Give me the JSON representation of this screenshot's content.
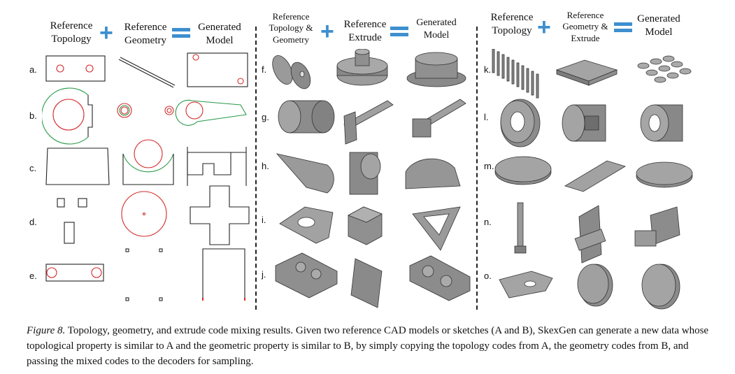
{
  "panels": [
    {
      "id": "sketch",
      "headers": [
        "Reference\nTopology",
        "Reference\nGeometry",
        "Generated\nModel"
      ],
      "ops": [
        "+",
        "="
      ],
      "rows": [
        "a.",
        "b.",
        "c.",
        "d.",
        "e."
      ]
    },
    {
      "id": "solid-extrude",
      "headers": [
        "Reference\nTopology &\nGeometry",
        "Reference\nExtrude",
        "Generated\nModel"
      ],
      "ops": [
        "+",
        "="
      ],
      "rows": [
        "f.",
        "g.",
        "h.",
        "i.",
        "j."
      ]
    },
    {
      "id": "solid-topology",
      "headers": [
        "Reference\nTopology",
        "Reference\nGeometry &\nExtrude",
        "Generated\nModel"
      ],
      "ops": [
        "+",
        "="
      ],
      "rows": [
        "k.",
        "l.",
        "m.",
        "n.",
        "o."
      ]
    }
  ],
  "caption": {
    "label": "Figure 8.",
    "text": " Topology, geometry, and extrude code mixing results. Given two reference CAD models or sketches (A and B), SkexGen can generate a new data whose topological property is similar to A and the geometric property is similar to B, by simply copying the topology codes from A, the geometry codes from B, and passing the mixed codes to the decoders for sampling."
  },
  "colors": {
    "operator": "#3d8fcf",
    "loop_red": "#d42a2a",
    "loop_green": "#2a9a4a",
    "solid_gray": "#8c8c8c"
  }
}
